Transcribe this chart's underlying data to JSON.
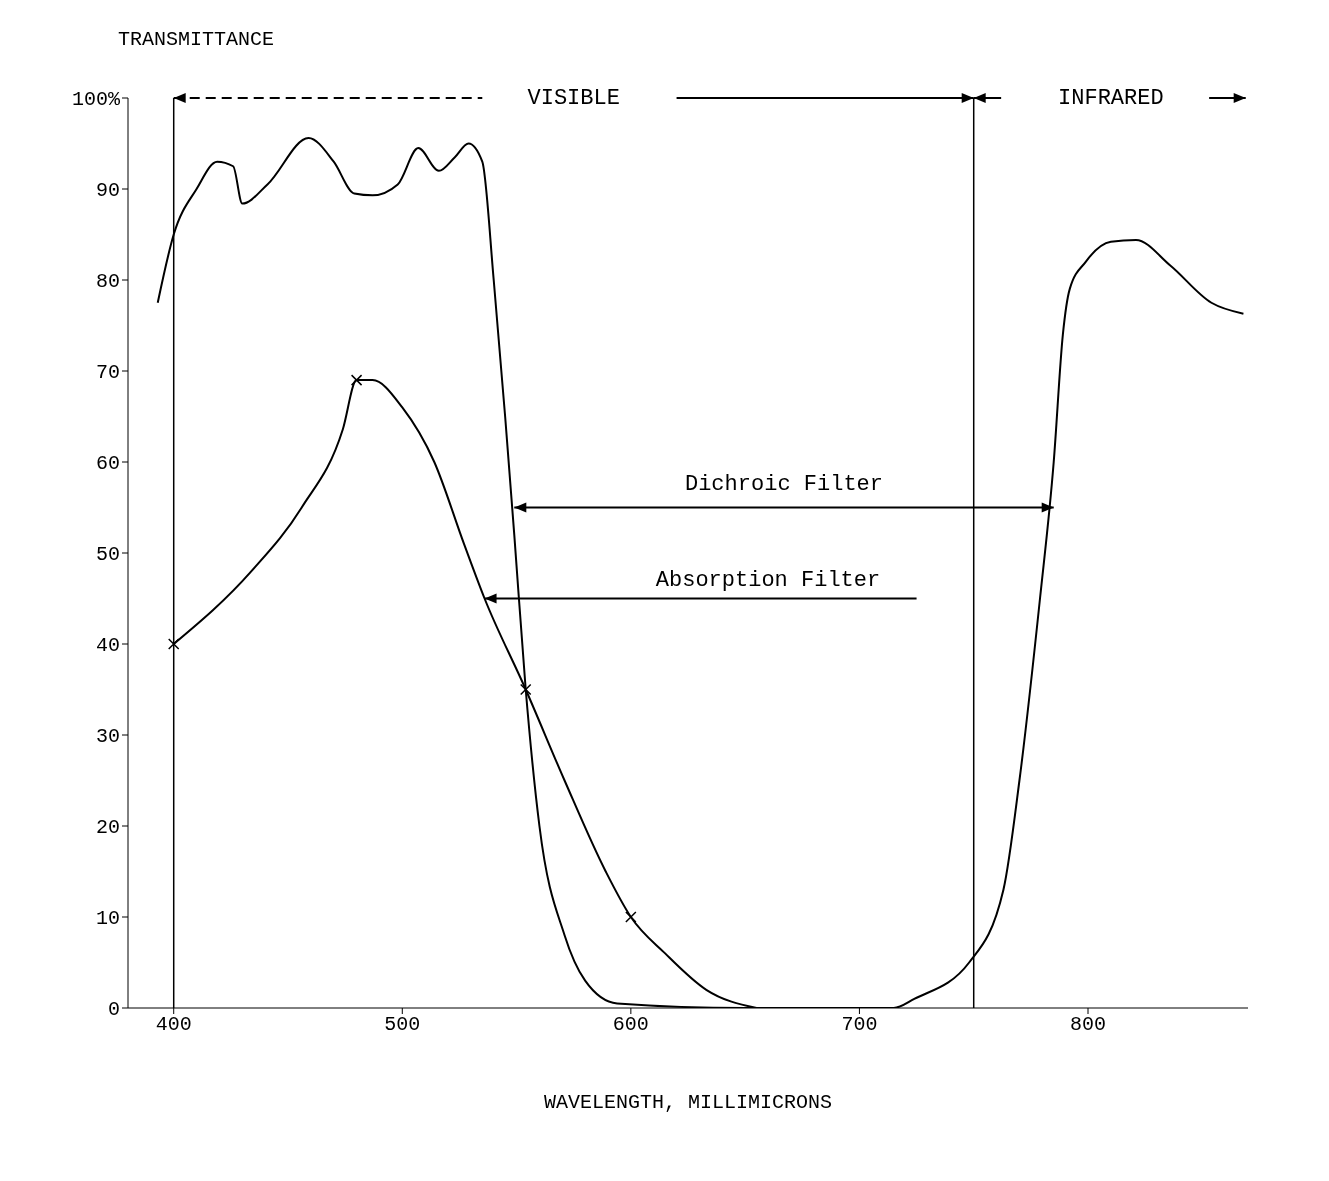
{
  "chart_data": {
    "type": "line",
    "ylabel": "TRANSMITTANCE",
    "xlabel": "WAVELENGTH, MILLIMICRONS",
    "xlim": [
      380,
      870
    ],
    "xticks": [
      400,
      500,
      600,
      700,
      800
    ],
    "ylim": [
      0,
      100
    ],
    "yticks": [
      0,
      10,
      20,
      30,
      40,
      50,
      60,
      70,
      80,
      90,
      {
        "value": 100,
        "label": "100%"
      }
    ],
    "grid": false,
    "legend": false,
    "line_style": "solid",
    "series": [
      {
        "color": "#000000",
        "marker": "none",
        "x": [
          393,
          400,
          410,
          419,
          426,
          430,
          441,
          459,
          470,
          479,
          487,
          498,
          507,
          516,
          523,
          529,
          535,
          540,
          545,
          549,
          554,
          560,
          571,
          580,
          594,
          650,
          700,
          715,
          724,
          748,
          763,
          770,
          779,
          785,
          789,
          792,
          799,
          810,
          821,
          836,
          854,
          868
        ],
        "values": [
          77.5,
          85,
          90,
          93,
          92.5,
          88.4,
          90.5,
          95.6,
          93,
          89.5,
          89.3,
          90.5,
          94.5,
          92,
          93.5,
          95,
          93,
          80,
          65,
          52,
          35,
          20,
          8,
          3,
          0.5,
          0,
          0,
          0,
          1,
          5,
          13,
          25,
          45,
          60,
          74,
          79,
          82,
          84.2,
          84.4,
          81.6,
          77.5,
          76.3
        ]
      },
      {
        "color": "#000000",
        "marker": "none",
        "x": [
          400,
          434,
          456,
          474,
          480,
          487,
          500,
          514,
          527,
          536,
          554,
          571,
          589,
          600,
          615,
          633,
          655
        ],
        "values": [
          40,
          48,
          55,
          63.6,
          69,
          69,
          66,
          60,
          51,
          45,
          35,
          25,
          15,
          10,
          6,
          2,
          0
        ]
      },
      {
        "type": "scatter",
        "color": "#000000",
        "marker": "cross",
        "x": [
          400,
          480,
          554,
          600
        ],
        "values": [
          40,
          69,
          35,
          10
        ]
      }
    ],
    "ref_lines": [
      {
        "axis": "x",
        "value": 400,
        "color": "#000000"
      },
      {
        "axis": "x",
        "value": 750,
        "color": "#000000"
      }
    ],
    "annotations": [
      "VISIBLE",
      "INFRARED",
      "Dichroic Filter",
      "Absorption Filter"
    ]
  }
}
